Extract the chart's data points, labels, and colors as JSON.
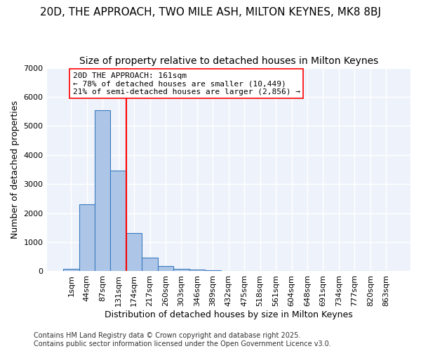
{
  "title_line1": "20D, THE APPROACH, TWO MILE ASH, MILTON KEYNES, MK8 8BJ",
  "title_line2": "Size of property relative to detached houses in Milton Keynes",
  "xlabel": "Distribution of detached houses by size in Milton Keynes",
  "ylabel": "Number of detached properties",
  "categories": [
    "1sqm",
    "44sqm",
    "87sqm",
    "131sqm",
    "174sqm",
    "217sqm",
    "260sqm",
    "303sqm",
    "346sqm",
    "389sqm",
    "432sqm",
    "475sqm",
    "518sqm",
    "561sqm",
    "604sqm",
    "648sqm",
    "691sqm",
    "734sqm",
    "777sqm",
    "820sqm",
    "863sqm"
  ],
  "values": [
    80,
    2300,
    5550,
    3470,
    1320,
    480,
    170,
    90,
    55,
    30,
    0,
    0,
    0,
    0,
    0,
    0,
    0,
    0,
    0,
    0,
    0
  ],
  "bar_color": "#adc6e8",
  "bar_edge_color": "#3a7abf",
  "vline_x": 3.5,
  "vline_color": "red",
  "annotation_text": "20D THE APPROACH: 161sqm\n← 78% of detached houses are smaller (10,449)\n21% of semi-detached houses are larger (2,856) →",
  "annotation_box_color": "white",
  "annotation_box_edge": "red",
  "ylim": [
    0,
    7000
  ],
  "yticks": [
    0,
    1000,
    2000,
    3000,
    4000,
    5000,
    6000,
    7000
  ],
  "background_color": "#eef3fb",
  "grid_color": "white",
  "footer_line1": "Contains HM Land Registry data © Crown copyright and database right 2025.",
  "footer_line2": "Contains public sector information licensed under the Open Government Licence v3.0.",
  "title_fontsize": 11,
  "subtitle_fontsize": 10,
  "axis_label_fontsize": 9,
  "tick_fontsize": 8,
  "annotation_fontsize": 8,
  "footer_fontsize": 7
}
